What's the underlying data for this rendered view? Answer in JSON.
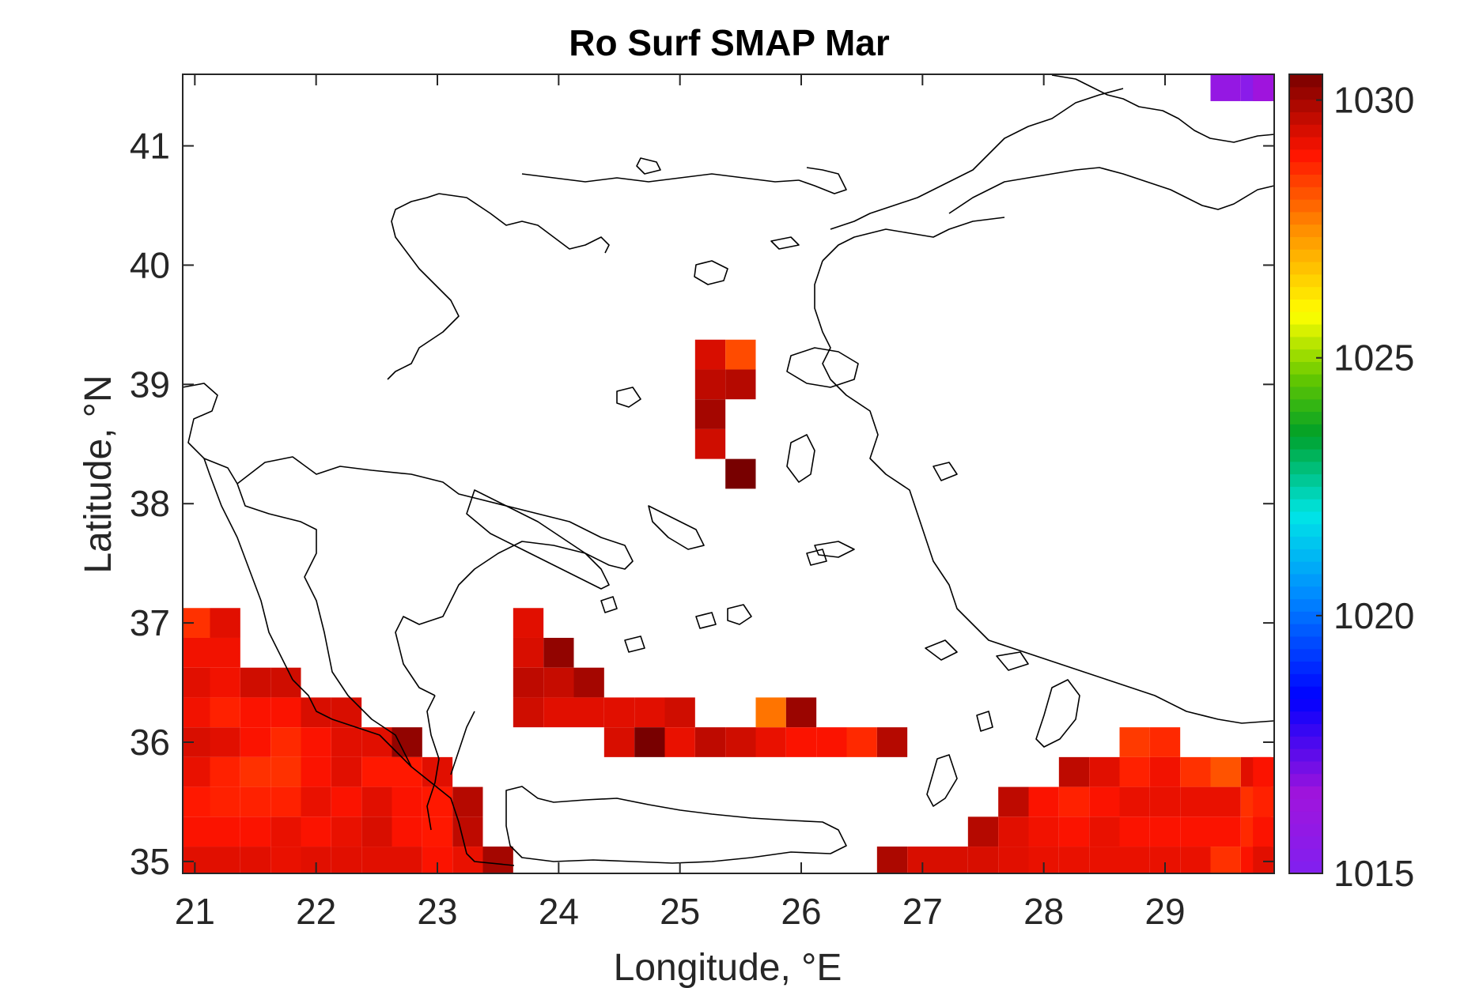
{
  "title": "Ro Surf SMAP Mar",
  "xlabel": "Longitude, °E",
  "ylabel": "Latitude, °N",
  "map": {
    "lon_range": [
      20.9,
      29.9
    ],
    "lat_range": [
      34.9,
      41.6
    ],
    "lon_ticks": [
      "21",
      "22",
      "23",
      "24",
      "25",
      "26",
      "27",
      "28",
      "29"
    ],
    "lat_ticks": [
      "35",
      "36",
      "37",
      "38",
      "39",
      "40",
      "41"
    ],
    "coastline_color": "#000000"
  },
  "colorbar": {
    "range": [
      1015,
      1030.5
    ],
    "tick_labels": [
      "1015",
      "1020",
      "1025",
      "1030"
    ],
    "colormap": "jet-like: purple → blue → cyan → green → yellow → orange → red → dark red"
  },
  "chart_data": {
    "type": "heatmap",
    "variable": "Ro Surf SMAP Mar",
    "cell_size_deg": 0.25,
    "cells": [
      [
        21.0,
        37.0,
        1028.6
      ],
      [
        21.25,
        37.0,
        1029.3
      ],
      [
        21.0,
        36.75,
        1029.1
      ],
      [
        21.25,
        36.75,
        1029.1
      ],
      [
        21.0,
        36.5,
        1029.3
      ],
      [
        21.25,
        36.5,
        1029.1
      ],
      [
        21.5,
        36.5,
        1029.5
      ],
      [
        21.75,
        36.5,
        1029.5
      ],
      [
        21.0,
        36.25,
        1029.1
      ],
      [
        21.25,
        36.25,
        1028.8
      ],
      [
        21.5,
        36.25,
        1029.0
      ],
      [
        21.75,
        36.25,
        1029.0
      ],
      [
        22.0,
        36.25,
        1029.4
      ],
      [
        22.25,
        36.25,
        1029.4
      ],
      [
        21.0,
        36.0,
        1029.4
      ],
      [
        21.25,
        36.0,
        1029.3
      ],
      [
        21.5,
        36.0,
        1029.0
      ],
      [
        21.75,
        36.0,
        1028.7
      ],
      [
        22.0,
        36.0,
        1029.0
      ],
      [
        22.25,
        36.0,
        1029.3
      ],
      [
        22.5,
        36.0,
        1029.3
      ],
      [
        22.75,
        36.0,
        1030.2
      ],
      [
        21.0,
        35.75,
        1029.2
      ],
      [
        21.25,
        35.75,
        1028.8
      ],
      [
        21.5,
        35.75,
        1028.6
      ],
      [
        21.75,
        35.75,
        1028.6
      ],
      [
        22.0,
        35.75,
        1029.0
      ],
      [
        22.25,
        35.75,
        1029.3
      ],
      [
        22.5,
        35.75,
        1028.9
      ],
      [
        22.75,
        35.75,
        1028.9
      ],
      [
        23.0,
        35.75,
        1029.3
      ],
      [
        21.0,
        35.5,
        1028.9
      ],
      [
        21.25,
        35.5,
        1028.8
      ],
      [
        21.5,
        35.5,
        1028.8
      ],
      [
        21.75,
        35.5,
        1028.8
      ],
      [
        22.0,
        35.5,
        1029.2
      ],
      [
        22.25,
        35.5,
        1029.0
      ],
      [
        22.5,
        35.5,
        1029.3
      ],
      [
        22.75,
        35.5,
        1029.0
      ],
      [
        23.0,
        35.5,
        1028.9
      ],
      [
        23.25,
        35.5,
        1029.8
      ],
      [
        21.0,
        35.25,
        1029.0
      ],
      [
        21.25,
        35.25,
        1029.0
      ],
      [
        21.5,
        35.25,
        1029.0
      ],
      [
        21.75,
        35.25,
        1029.2
      ],
      [
        22.0,
        35.25,
        1029.0
      ],
      [
        22.25,
        35.25,
        1029.2
      ],
      [
        22.5,
        35.25,
        1029.4
      ],
      [
        22.75,
        35.25,
        1029.0
      ],
      [
        23.0,
        35.25,
        1028.9
      ],
      [
        23.25,
        35.25,
        1029.7
      ],
      [
        21.0,
        35.0,
        1029.3
      ],
      [
        21.25,
        35.0,
        1029.3
      ],
      [
        21.5,
        35.0,
        1029.3
      ],
      [
        21.75,
        35.0,
        1029.2
      ],
      [
        22.0,
        35.0,
        1029.3
      ],
      [
        22.25,
        35.0,
        1029.3
      ],
      [
        22.5,
        35.0,
        1029.3
      ],
      [
        22.75,
        35.0,
        1029.3
      ],
      [
        23.0,
        35.0,
        1029.0
      ],
      [
        23.25,
        35.0,
        1029.2
      ],
      [
        23.5,
        35.0,
        1030.0
      ],
      [
        23.75,
        37.0,
        1029.3
      ],
      [
        24.0,
        36.75,
        1030.2
      ],
      [
        23.75,
        36.75,
        1029.4
      ],
      [
        23.75,
        36.5,
        1029.7
      ],
      [
        24.0,
        36.5,
        1029.6
      ],
      [
        24.25,
        36.5,
        1030.0
      ],
      [
        23.75,
        36.25,
        1029.5
      ],
      [
        24.0,
        36.25,
        1029.3
      ],
      [
        24.25,
        36.25,
        1029.3
      ],
      [
        24.5,
        36.25,
        1029.3
      ],
      [
        24.75,
        36.25,
        1029.3
      ],
      [
        25.0,
        36.25,
        1029.5
      ],
      [
        24.5,
        36.0,
        1029.4
      ],
      [
        24.75,
        36.0,
        1030.5
      ],
      [
        25.0,
        36.0,
        1029.2
      ],
      [
        25.25,
        36.0,
        1029.7
      ],
      [
        25.5,
        36.0,
        1029.5
      ],
      [
        25.75,
        36.0,
        1029.2
      ],
      [
        26.0,
        36.0,
        1029.0
      ],
      [
        26.25,
        36.0,
        1029.0
      ],
      [
        26.5,
        36.0,
        1028.7
      ],
      [
        26.75,
        36.0,
        1029.8
      ],
      [
        25.75,
        36.25,
        1027.8
      ],
      [
        26.0,
        36.25,
        1030.1
      ],
      [
        25.25,
        39.25,
        1029.4
      ],
      [
        25.5,
        39.25,
        1028.3
      ],
      [
        25.25,
        39.0,
        1029.7
      ],
      [
        25.5,
        39.0,
        1029.8
      ],
      [
        25.25,
        38.75,
        1030.0
      ],
      [
        25.25,
        38.5,
        1029.5
      ],
      [
        25.5,
        38.25,
        1030.5
      ],
      [
        29.5,
        41.5,
        1016.0
      ],
      [
        29.75,
        41.5,
        1015.5
      ],
      [
        29.85,
        41.5,
        1016.5
      ],
      [
        28.75,
        36.0,
        1028.5
      ],
      [
        29.0,
        36.0,
        1028.7
      ],
      [
        28.25,
        35.75,
        1029.7
      ],
      [
        28.5,
        35.75,
        1029.3
      ],
      [
        28.75,
        35.75,
        1028.8
      ],
      [
        29.0,
        35.75,
        1029.1
      ],
      [
        29.25,
        35.75,
        1028.6
      ],
      [
        29.5,
        35.75,
        1028.2
      ],
      [
        29.75,
        35.75,
        1029.3
      ],
      [
        29.85,
        35.75,
        1029.0
      ],
      [
        27.75,
        35.5,
        1029.7
      ],
      [
        28.0,
        35.5,
        1029.0
      ],
      [
        28.25,
        35.5,
        1028.8
      ],
      [
        28.5,
        35.5,
        1029.0
      ],
      [
        28.75,
        35.5,
        1029.2
      ],
      [
        29.0,
        35.5,
        1029.2
      ],
      [
        29.25,
        35.5,
        1029.2
      ],
      [
        29.5,
        35.5,
        1029.2
      ],
      [
        29.75,
        35.5,
        1028.6
      ],
      [
        29.85,
        35.5,
        1028.8
      ],
      [
        27.5,
        35.25,
        1029.8
      ],
      [
        27.75,
        35.25,
        1029.3
      ],
      [
        28.0,
        35.25,
        1029.1
      ],
      [
        28.25,
        35.25,
        1029.0
      ],
      [
        28.5,
        35.25,
        1029.2
      ],
      [
        28.75,
        35.25,
        1029.0
      ],
      [
        29.0,
        35.25,
        1029.0
      ],
      [
        29.25,
        35.25,
        1029.0
      ],
      [
        29.5,
        35.25,
        1029.0
      ],
      [
        29.75,
        35.25,
        1028.7
      ],
      [
        29.85,
        35.25,
        1029.0
      ],
      [
        26.75,
        35.0,
        1029.9
      ],
      [
        27.0,
        35.0,
        1029.4
      ],
      [
        27.25,
        35.0,
        1029.4
      ],
      [
        27.5,
        35.0,
        1029.4
      ],
      [
        27.75,
        35.0,
        1029.3
      ],
      [
        28.0,
        35.0,
        1029.2
      ],
      [
        28.25,
        35.0,
        1029.2
      ],
      [
        28.5,
        35.0,
        1029.2
      ],
      [
        28.75,
        35.0,
        1029.2
      ],
      [
        29.0,
        35.0,
        1029.2
      ],
      [
        29.25,
        35.0,
        1029.2
      ],
      [
        29.5,
        35.0,
        1028.6
      ],
      [
        29.75,
        35.0,
        1029.0
      ],
      [
        29.85,
        35.0,
        1029.3
      ]
    ]
  }
}
